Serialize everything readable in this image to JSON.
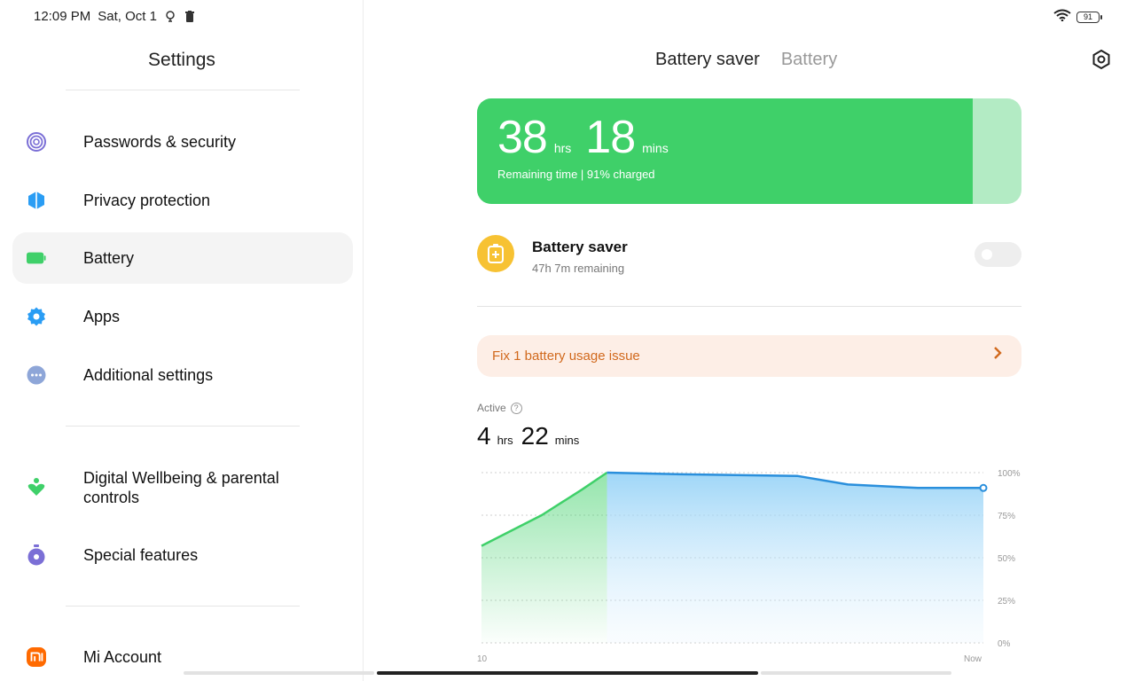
{
  "status_bar": {
    "time": "12:09 PM",
    "date": "Sat, Oct 1",
    "battery_level": "91",
    "icons": [
      "location-icon",
      "trash-icon",
      "wifi-icon",
      "battery-icon"
    ]
  },
  "left_pane": {
    "title": "Settings",
    "items": [
      {
        "label": "Passwords & security",
        "icon": "fingerprint-icon",
        "color": "#7b6fd6"
      },
      {
        "label": "Privacy protection",
        "icon": "privacy-shield-icon",
        "color": "#2a9df4"
      },
      {
        "label": "Battery",
        "icon": "battery-icon",
        "color": "#3fd069",
        "active": true
      },
      {
        "label": "Apps",
        "icon": "gear-icon",
        "color": "#2a9df4"
      },
      {
        "label": "Additional settings",
        "icon": "more-icon",
        "color": "#8ea6d8"
      },
      {
        "label": "Digital Wellbeing & parental controls",
        "icon": "wellbeing-heart-icon",
        "color": "#3fd069"
      },
      {
        "label": "Special features",
        "icon": "stopwatch-icon",
        "color": "#7b6fd6"
      },
      {
        "label": "Mi Account",
        "icon": "mi-logo-icon",
        "color": "#ff6a00"
      }
    ]
  },
  "header": {
    "tabs": [
      {
        "label": "Battery saver",
        "active": true
      },
      {
        "label": "Battery",
        "active": false
      }
    ],
    "settings_icon": "settings-hexagon-icon"
  },
  "hero": {
    "hours": "38",
    "hours_unit": "hrs",
    "minutes": "18",
    "minutes_unit": "mins",
    "subtitle": "Remaining time | 91% charged",
    "charge_fraction": 0.91,
    "fill_color": "#3fd069",
    "track_color": "#b3ebc4"
  },
  "battery_saver": {
    "title": "Battery saver",
    "subtitle": "47h 7m remaining",
    "enabled": false
  },
  "issue": {
    "text": "Fix 1 battery usage issue"
  },
  "active": {
    "label": "Active",
    "hours": "4",
    "hours_unit": "hrs",
    "minutes": "22",
    "minutes_unit": "mins"
  },
  "chart_data": {
    "type": "area",
    "x_labels": [
      "10",
      "Now"
    ],
    "y_ticks": [
      "100%",
      "75%",
      "50%",
      "25%",
      "0%"
    ],
    "ylim": [
      0,
      100
    ],
    "grid": true,
    "series": [
      {
        "points": [
          [
            0,
            57
          ],
          [
            0.12,
            75
          ],
          [
            0.2,
            90
          ],
          [
            0.25,
            100
          ],
          [
            0.4,
            99
          ],
          [
            0.63,
            98
          ],
          [
            0.73,
            93
          ],
          [
            0.87,
            91
          ],
          [
            1.0,
            91
          ]
        ]
      }
    ],
    "charging_end_fraction": 0.25,
    "charging_color": "#3fd069",
    "discharging_color": "#2a8fdc"
  }
}
